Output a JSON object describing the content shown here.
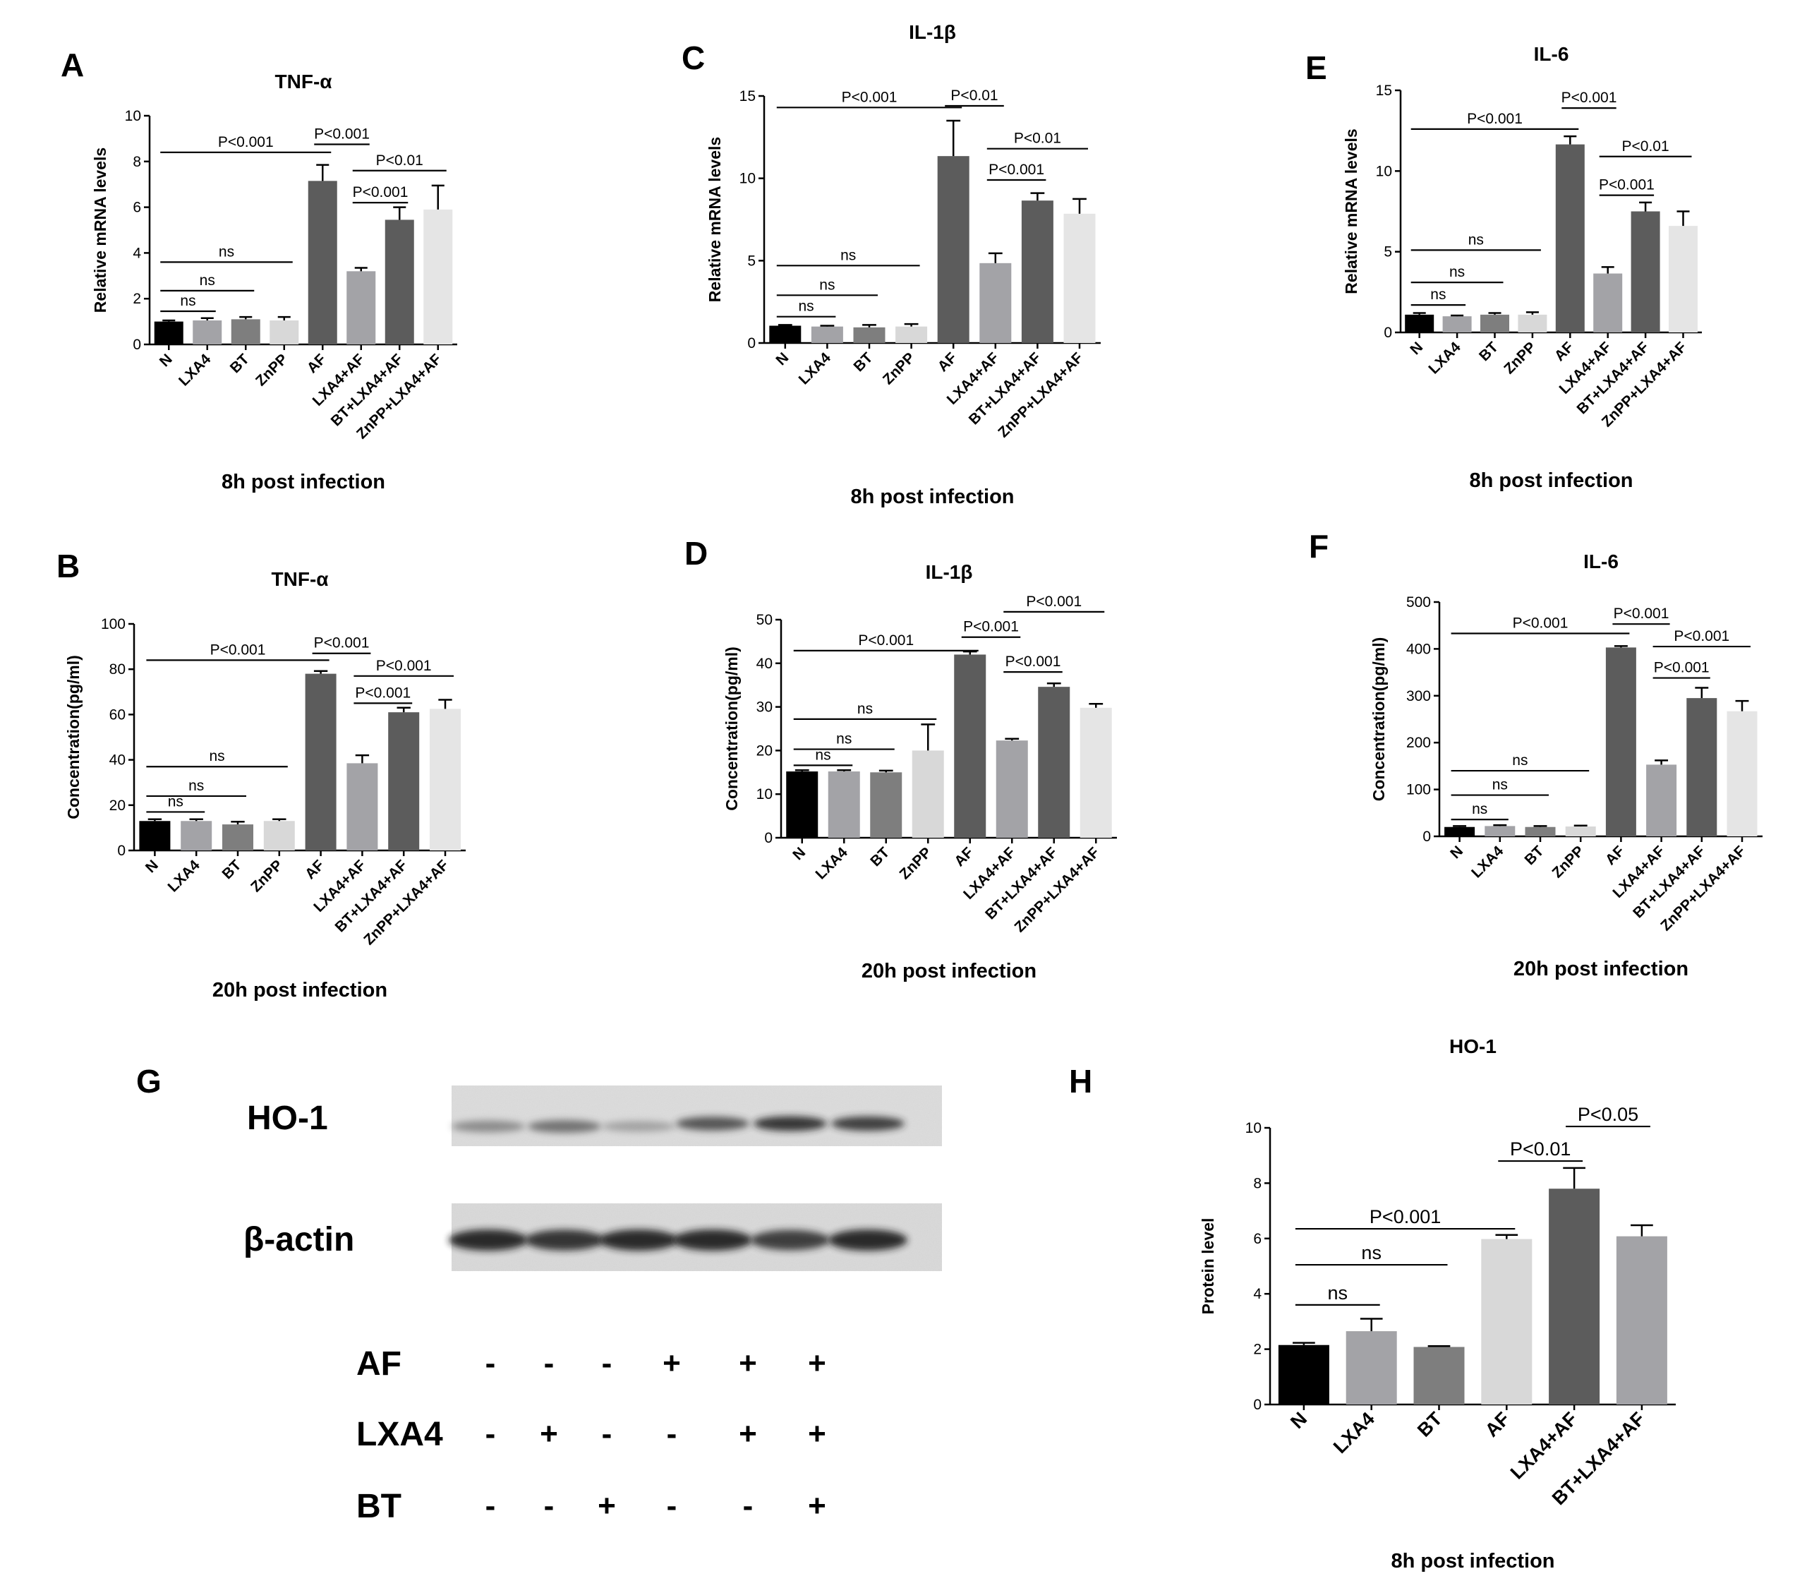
{
  "figure_panels": {
    "A": "A",
    "B": "B",
    "C": "C",
    "D": "D",
    "E": "E",
    "F": "F",
    "G": "G",
    "H": "H"
  },
  "western_blot": {
    "bands": [
      {
        "label": "HO-1",
        "intensities": [
          0.45,
          0.6,
          0.3,
          0.75,
          0.9,
          0.85
        ]
      },
      {
        "label": "β-actin",
        "intensities": [
          0.95,
          0.9,
          0.95,
          0.95,
          0.85,
          0.95
        ]
      }
    ],
    "treatments": [
      {
        "label": "AF",
        "signs": [
          "-",
          "-",
          "-",
          "+",
          "+",
          "+"
        ]
      },
      {
        "label": "LXA4",
        "signs": [
          "-",
          "+",
          "-",
          "-",
          "+",
          "+"
        ]
      },
      {
        "label": "BT",
        "signs": [
          "-",
          "-",
          "+",
          "-",
          "-",
          "+"
        ]
      }
    ]
  },
  "chart_data": [
    {
      "panel": "A",
      "type": "bar",
      "title": "TNF-α",
      "xlabel": "8h post infection",
      "ylabel": "Relative mRNA levels",
      "ylim": [
        0,
        10
      ],
      "yticks": [
        0,
        2,
        4,
        6,
        8,
        10
      ],
      "categories": [
        "N",
        "LXA4",
        "BT",
        "ZnPP",
        "AF",
        "LXA4+AF",
        "BT+LXA4+AF",
        "ZnPP+LXA4+AF"
      ],
      "values": [
        1.0,
        1.05,
        1.1,
        1.05,
        7.15,
        3.2,
        5.45,
        5.9
      ],
      "errors": [
        0.05,
        0.1,
        0.1,
        0.15,
        0.7,
        0.15,
        0.55,
        1.05
      ],
      "colors": [
        "#000000",
        "#a3a3a7",
        "#7e7e7e",
        "#d8d8d8",
        "#5c5c5c",
        "#a3a3a7",
        "#5c5c5c",
        "#e5e5e5"
      ],
      "annotations": [
        {
          "from": 0,
          "to": 1,
          "level": 1.45,
          "text": "ns"
        },
        {
          "from": 0,
          "to": 2,
          "level": 2.35,
          "text": "ns"
        },
        {
          "from": 0,
          "to": 3,
          "level": 3.6,
          "text": "ns"
        },
        {
          "from": 0,
          "to": 4,
          "level": 8.4,
          "text": "P<0.001"
        },
        {
          "from": 4,
          "to": 5,
          "level": 8.75,
          "text": "P<0.001"
        },
        {
          "from": 5,
          "to": 6,
          "level": 6.2,
          "text": "P<0.001"
        },
        {
          "from": 5,
          "to": 7,
          "level": 7.6,
          "text": "P<0.01"
        }
      ]
    },
    {
      "panel": "B",
      "type": "bar",
      "title": "TNF-α",
      "xlabel": "20h post infection",
      "ylabel": "Concentration(pg/ml)",
      "ylim": [
        0,
        100
      ],
      "yticks": [
        0,
        20,
        40,
        60,
        80,
        100
      ],
      "categories": [
        "N",
        "LXA4",
        "BT",
        "ZnPP",
        "AF",
        "LXA4+AF",
        "BT+LXA4+AF",
        "ZnPP+LXA4+AF"
      ],
      "values": [
        13,
        13,
        11.5,
        13,
        78,
        38.5,
        61,
        62.5
      ],
      "errors": [
        0.8,
        0.8,
        1.2,
        0.8,
        1.2,
        3.5,
        2.0,
        4.0
      ],
      "colors": [
        "#000000",
        "#a3a3a7",
        "#7e7e7e",
        "#d8d8d8",
        "#5c5c5c",
        "#a3a3a7",
        "#5c5c5c",
        "#e5e5e5"
      ],
      "annotations": [
        {
          "from": 0,
          "to": 1,
          "level": 17,
          "text": "ns"
        },
        {
          "from": 0,
          "to": 2,
          "level": 24,
          "text": "ns"
        },
        {
          "from": 0,
          "to": 3,
          "level": 37,
          "text": "ns"
        },
        {
          "from": 0,
          "to": 4,
          "level": 84,
          "text": "P<0.001"
        },
        {
          "from": 4,
          "to": 5,
          "level": 87,
          "text": "P<0.001"
        },
        {
          "from": 5,
          "to": 6,
          "level": 65,
          "text": "P<0.001"
        },
        {
          "from": 5,
          "to": 7,
          "level": 77,
          "text": "P<0.001"
        }
      ]
    },
    {
      "panel": "C",
      "type": "bar",
      "title": "IL-1β",
      "xlabel": "8h post infection",
      "ylabel": "Relative mRNA levels",
      "ylim": [
        0,
        15
      ],
      "yticks": [
        0,
        5,
        10,
        15
      ],
      "categories": [
        "N",
        "LXA4",
        "BT",
        "ZnPP",
        "AF",
        "LXA4+AF",
        "BT+LXA4+AF",
        "ZnPP+LXA4+AF"
      ],
      "values": [
        1.05,
        1.0,
        0.95,
        1.0,
        11.35,
        4.85,
        8.65,
        7.85
      ],
      "errors": [
        0.05,
        0.05,
        0.15,
        0.15,
        2.15,
        0.6,
        0.45,
        0.9
      ],
      "colors": [
        "#000000",
        "#a3a3a7",
        "#7e7e7e",
        "#d8d8d8",
        "#5c5c5c",
        "#a3a3a7",
        "#5c5c5c",
        "#e5e5e5"
      ],
      "annotations": [
        {
          "from": 0,
          "to": 1,
          "level": 1.6,
          "text": "ns"
        },
        {
          "from": 0,
          "to": 2,
          "level": 2.9,
          "text": "ns"
        },
        {
          "from": 0,
          "to": 3,
          "level": 4.7,
          "text": "ns"
        },
        {
          "from": 0,
          "to": 4,
          "level": 14.3,
          "text": "P<0.001"
        },
        {
          "from": 4,
          "to": 5,
          "level": 14.4,
          "text": "P<0.01"
        },
        {
          "from": 5,
          "to": 6,
          "level": 9.9,
          "text": "P<0.001"
        },
        {
          "from": 5,
          "to": 7,
          "level": 11.8,
          "text": "P<0.01"
        }
      ]
    },
    {
      "panel": "D",
      "type": "bar",
      "title": "IL-1β",
      "xlabel": "20h post infection",
      "ylabel": "Concentration(pg/ml)",
      "ylim": [
        0,
        50
      ],
      "yticks": [
        0,
        10,
        20,
        30,
        40,
        50
      ],
      "categories": [
        "N",
        "LXA4",
        "BT",
        "ZnPP",
        "AF",
        "LXA4+AF",
        "BT+LXA4+AF",
        "ZnPP+LXA4+AF"
      ],
      "values": [
        15.2,
        15.2,
        15.0,
        20.0,
        42.0,
        22.3,
        34.6,
        29.8
      ],
      "errors": [
        0.3,
        0.3,
        0.4,
        6.0,
        0.7,
        0.4,
        0.8,
        0.9
      ],
      "colors": [
        "#000000",
        "#a3a3a7",
        "#7e7e7e",
        "#d8d8d8",
        "#5c5c5c",
        "#a3a3a7",
        "#5c5c5c",
        "#e5e5e5"
      ],
      "annotations": [
        {
          "from": 0,
          "to": 1,
          "level": 16.6,
          "text": "ns"
        },
        {
          "from": 0,
          "to": 2,
          "level": 20.3,
          "text": "ns"
        },
        {
          "from": 0,
          "to": 3,
          "level": 27.2,
          "text": "ns"
        },
        {
          "from": 0,
          "to": 4,
          "level": 42.9,
          "text": "P<0.001"
        },
        {
          "from": 4,
          "to": 5,
          "level": 46.0,
          "text": "P<0.001"
        },
        {
          "from": 5,
          "to": 6,
          "level": 38.0,
          "text": "P<0.001"
        },
        {
          "from": 5,
          "to": 7,
          "level": 51.8,
          "text": "P<0.001"
        }
      ]
    },
    {
      "panel": "E",
      "type": "bar",
      "title": "IL-6",
      "xlabel": "8h post infection",
      "ylabel": "Relative mRNA levels",
      "ylim": [
        0,
        15
      ],
      "yticks": [
        0,
        5,
        10,
        15
      ],
      "categories": [
        "N",
        "LXA4",
        "BT",
        "ZnPP",
        "AF",
        "LXA4+AF",
        "BT+LXA4+AF",
        "ZnPP+LXA4+AF"
      ],
      "values": [
        1.1,
        1.0,
        1.1,
        1.1,
        11.65,
        3.65,
        7.5,
        6.6
      ],
      "errors": [
        0.1,
        0.05,
        0.1,
        0.15,
        0.5,
        0.4,
        0.55,
        0.9
      ],
      "colors": [
        "#000000",
        "#a3a3a7",
        "#7e7e7e",
        "#d8d8d8",
        "#5c5c5c",
        "#a3a3a7",
        "#5c5c5c",
        "#e5e5e5"
      ],
      "annotations": [
        {
          "from": 0,
          "to": 1,
          "level": 1.7,
          "text": "ns"
        },
        {
          "from": 0,
          "to": 2,
          "level": 3.1,
          "text": "ns"
        },
        {
          "from": 0,
          "to": 3,
          "level": 5.1,
          "text": "ns"
        },
        {
          "from": 0,
          "to": 4,
          "level": 12.6,
          "text": "P<0.001"
        },
        {
          "from": 4,
          "to": 5,
          "level": 13.9,
          "text": "P<0.001"
        },
        {
          "from": 5,
          "to": 6,
          "level": 8.5,
          "text": "P<0.001"
        },
        {
          "from": 5,
          "to": 7,
          "level": 10.9,
          "text": "P<0.01"
        }
      ]
    },
    {
      "panel": "F",
      "type": "bar",
      "title": "IL-6",
      "xlabel": "20h post infection",
      "ylabel": "Concentration(pg/ml)",
      "ylim": [
        0,
        500
      ],
      "yticks": [
        0,
        100,
        200,
        300,
        400,
        500
      ],
      "categories": [
        "N",
        "LXA4",
        "BT",
        "ZnPP",
        "AF",
        "LXA4+AF",
        "BT+LXA4+AF",
        "ZnPP+LXA4+AF"
      ],
      "values": [
        20,
        22,
        20,
        21,
        403,
        153,
        295,
        267
      ],
      "errors": [
        2,
        2,
        2,
        2,
        3,
        9,
        22,
        22
      ],
      "colors": [
        "#000000",
        "#a3a3a7",
        "#7e7e7e",
        "#d8d8d8",
        "#5c5c5c",
        "#a3a3a7",
        "#5c5c5c",
        "#e5e5e5"
      ],
      "annotations": [
        {
          "from": 0,
          "to": 1,
          "level": 36,
          "text": "ns"
        },
        {
          "from": 0,
          "to": 2,
          "level": 88,
          "text": "ns"
        },
        {
          "from": 0,
          "to": 3,
          "level": 140,
          "text": "ns"
        },
        {
          "from": 0,
          "to": 4,
          "level": 433,
          "text": "P<0.001"
        },
        {
          "from": 4,
          "to": 5,
          "level": 453,
          "text": "P<0.001"
        },
        {
          "from": 5,
          "to": 6,
          "level": 338,
          "text": "P<0.001"
        },
        {
          "from": 5,
          "to": 7,
          "level": 405,
          "text": "P<0.001"
        }
      ]
    },
    {
      "panel": "H",
      "type": "bar",
      "title": "HO-1",
      "xlabel": "8h post infection",
      "ylabel": "Protein level",
      "ylim": [
        0,
        10
      ],
      "yticks": [
        0,
        2,
        4,
        6,
        8,
        10
      ],
      "categories": [
        "N",
        "LXA4",
        "BT",
        "AF",
        "LXA4+AF",
        "BT+LXA4+AF"
      ],
      "values": [
        2.15,
        2.65,
        2.08,
        5.98,
        7.8,
        6.08
      ],
      "errors": [
        0.08,
        0.45,
        0.03,
        0.15,
        0.75,
        0.4
      ],
      "colors": [
        "#000000",
        "#a3a3a7",
        "#7e7e7e",
        "#d8d8d8",
        "#5c5c5c",
        "#a3a3a7"
      ],
      "annotations": [
        {
          "from": 0,
          "to": 1,
          "level": 3.6,
          "text": "ns"
        },
        {
          "from": 0,
          "to": 2,
          "level": 5.05,
          "text": "ns"
        },
        {
          "from": 0,
          "to": 3,
          "level": 6.35,
          "text": "P<0.001"
        },
        {
          "from": 3,
          "to": 4,
          "level": 8.8,
          "text": "P<0.01"
        },
        {
          "from": 4,
          "to": 5,
          "level": 10.05,
          "text": "P<0.05"
        }
      ]
    }
  ]
}
